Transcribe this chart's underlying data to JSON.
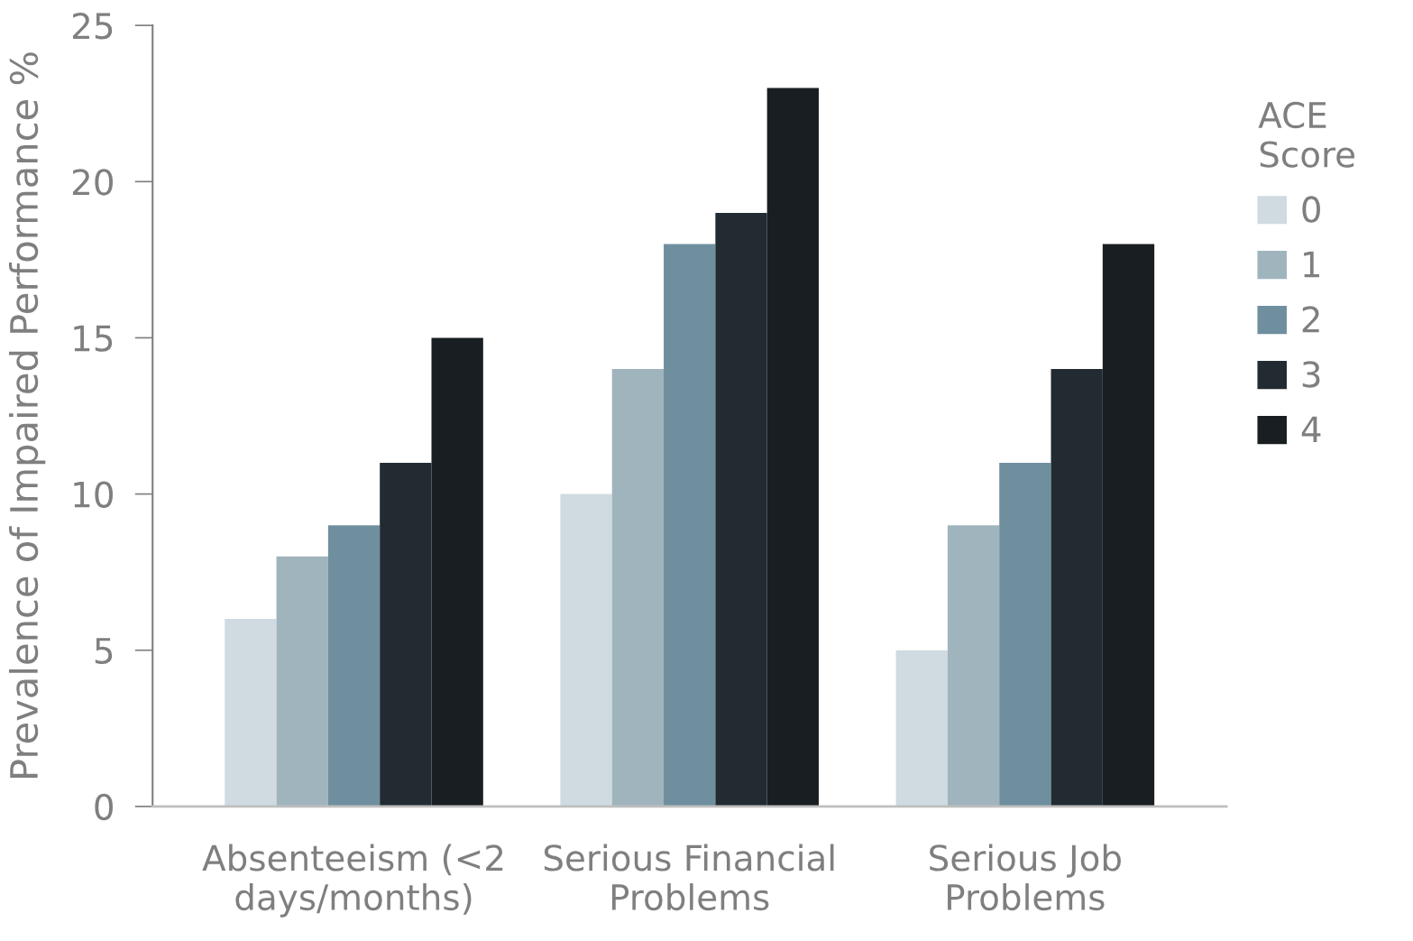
{
  "chart_data": {
    "type": "bar",
    "ylabel": "Prevalence of Impaired Performance %",
    "legend_title": "ACE\nScore",
    "categories": [
      "Absenteeism (<2\ndays/months)",
      "Serious Financial\nProblems",
      "Serious Job\nProblems"
    ],
    "series": [
      {
        "name": "0",
        "color": "#cfdbe0",
        "values": [
          6,
          10,
          5
        ]
      },
      {
        "name": "1",
        "color": "#a0b4be",
        "values": [
          8,
          14,
          9
        ]
      },
      {
        "name": "2",
        "color": "#6f8f9f",
        "values": [
          9,
          18,
          11
        ]
      },
      {
        "name": "3",
        "color": "#222b32",
        "values": [
          11,
          19,
          14
        ]
      },
      {
        "name": "4",
        "color": "#181e21",
        "values": [
          15,
          23,
          18
        ]
      }
    ],
    "ylim": [
      0,
      25
    ],
    "yticks": [
      0,
      5,
      10,
      15,
      20,
      25
    ],
    "grid": false,
    "legend": "right"
  }
}
